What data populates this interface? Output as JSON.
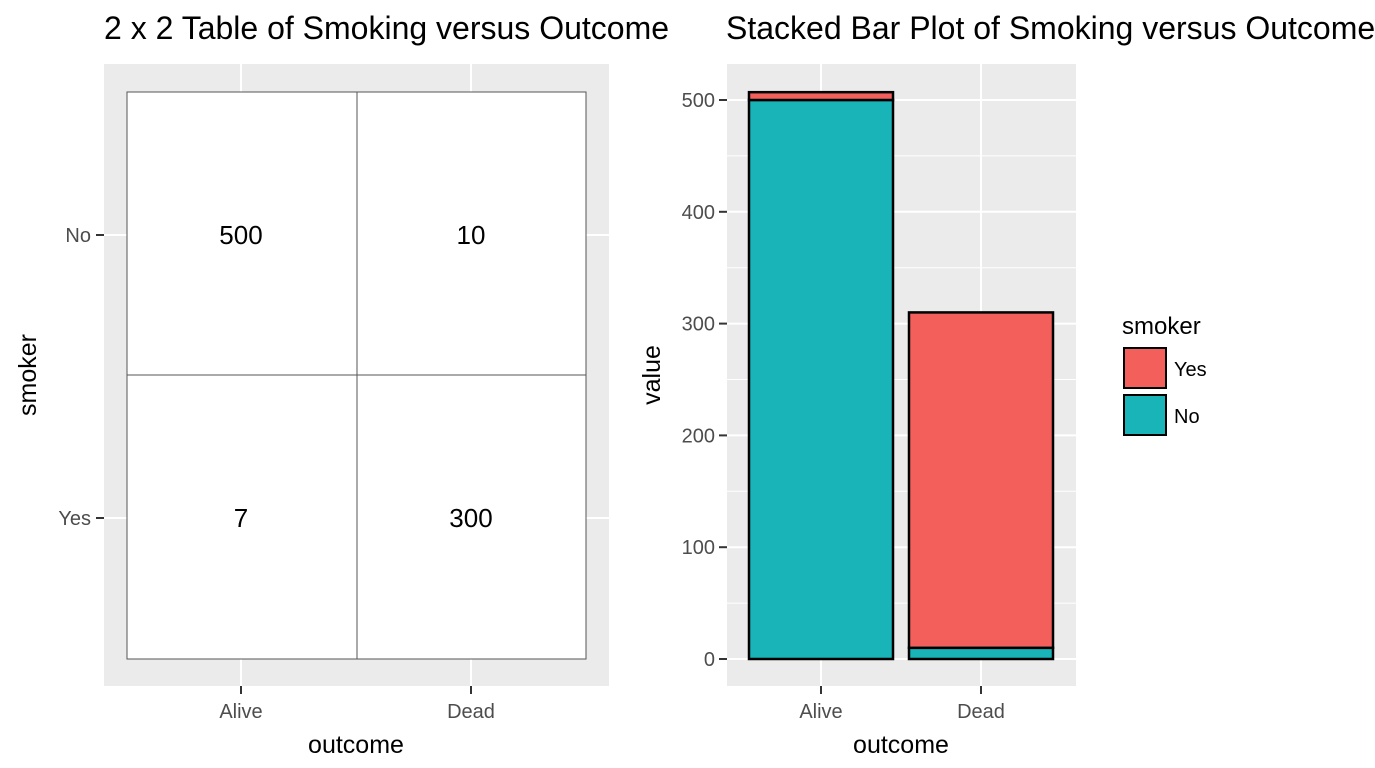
{
  "chart_data": [
    {
      "type": "table",
      "title": "2 x 2 Table of Smoking versus Outcome",
      "xlabel": "outcome",
      "ylabel": "smoker",
      "columns": [
        "Alive",
        "Dead"
      ],
      "rows": [
        "No",
        "Yes"
      ],
      "cells": [
        [
          "500",
          "10"
        ],
        [
          "7",
          "300"
        ]
      ]
    },
    {
      "type": "bar",
      "stacked": true,
      "title": "Stacked Bar Plot of Smoking versus Outcome",
      "xlabel": "outcome",
      "ylabel": "value",
      "categories": [
        "Alive",
        "Dead"
      ],
      "series": [
        {
          "name": "No",
          "values": [
            500,
            10
          ],
          "color": "#19B4B8"
        },
        {
          "name": "Yes",
          "values": [
            7,
            300
          ],
          "color": "#F3605C"
        }
      ],
      "ylim": [
        0,
        530
      ],
      "yticks": [
        "0",
        "100",
        "200",
        "300",
        "400",
        "500"
      ],
      "legend": {
        "title": "smoker",
        "position": "right",
        "entries": [
          "Yes",
          "No"
        ]
      },
      "grid": true
    }
  ]
}
